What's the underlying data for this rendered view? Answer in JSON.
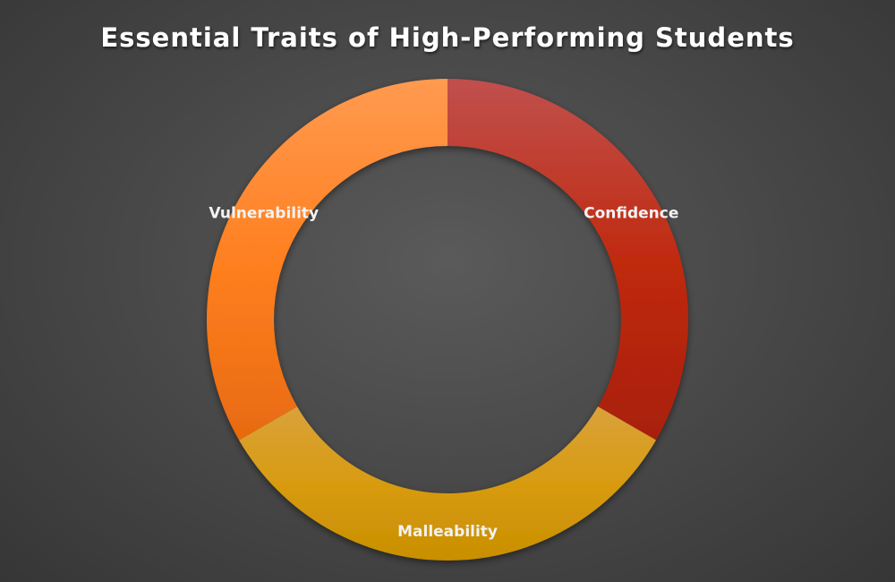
{
  "chart_data": {
    "type": "pie",
    "title": "Essential Traits of High-Performing Students",
    "categories": [
      "Confidence",
      "Malleability",
      "Vulnerability"
    ],
    "values": [
      33.33,
      33.33,
      33.34
    ],
    "colors": {
      "Confidence": [
        "#c0504d",
        "#c02a10",
        "#a81f0a"
      ],
      "Malleability": [
        "#d9a23b",
        "#d89b10",
        "#c98f00"
      ],
      "Vulnerability": [
        "#ff9a50",
        "#ff8020",
        "#e86a10"
      ]
    },
    "donut": true,
    "legend": "none",
    "start_angle_deg": 0,
    "direction": "clockwise"
  }
}
